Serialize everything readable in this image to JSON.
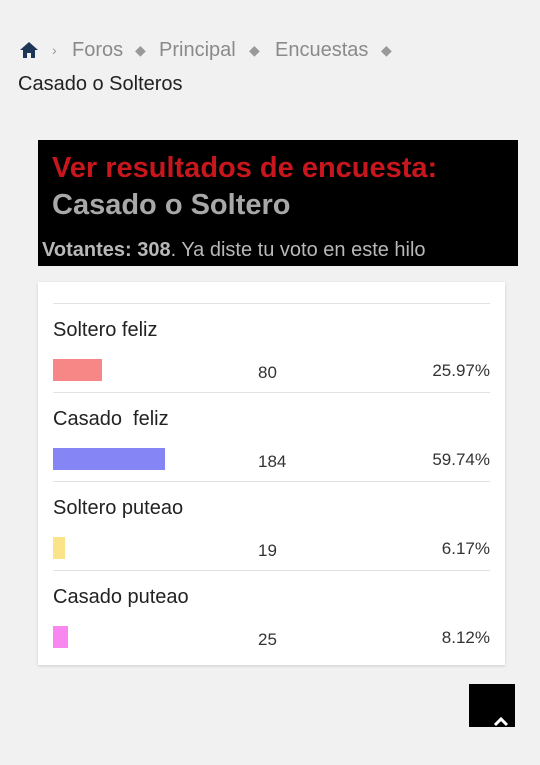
{
  "breadcrumb": [
    "Foros",
    "Principal",
    "Encuestas"
  ],
  "thread_title": "Casado o Solteros",
  "poll": {
    "heading": "Ver resultados de encuesta:",
    "title": "Casado o Soltero",
    "voters_label": "Votantes:",
    "voters": 308,
    "voted_note": ". Ya diste tu voto en este hilo",
    "options": [
      {
        "label": "Soltero feliz",
        "votes": 80,
        "percent": "25.97%",
        "color": "#f78787"
      },
      {
        "label": "Casado  feliz",
        "votes": 184,
        "percent": "59.74%",
        "color": "#8585f5"
      },
      {
        "label": "Soltero puteao",
        "votes": 19,
        "percent": "6.17%",
        "color": "#fbe38a"
      },
      {
        "label": "Casado puteao",
        "votes": 25,
        "percent": "8.12%",
        "color": "#f987f0"
      }
    ]
  }
}
